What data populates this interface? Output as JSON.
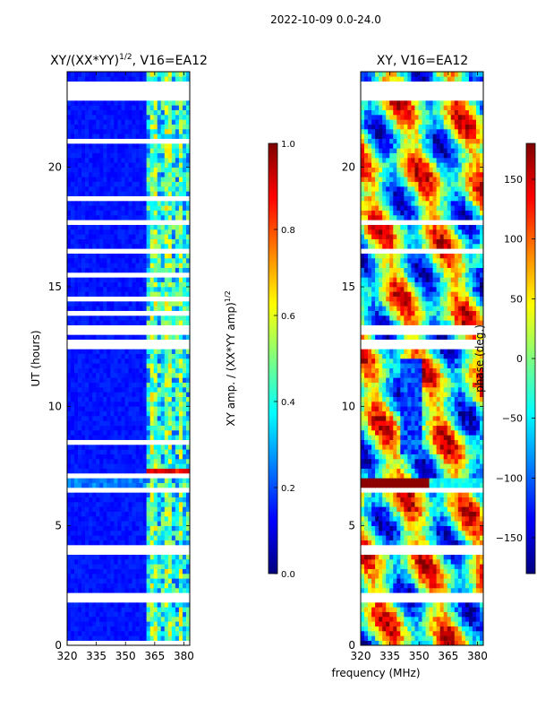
{
  "figure_title": "2022-10-09 0.0-24.0",
  "colors": {
    "background": "#ffffff",
    "jet": [
      "#00007f",
      "#0000ff",
      "#007fff",
      "#00ffff",
      "#7fff7f",
      "#ffff00",
      "#ff7f00",
      "#ff0000",
      "#7f0000"
    ]
  },
  "chart_data": [
    {
      "type": "heatmap",
      "title_main": "XY/(XX*YY)",
      "title_sup": "1/2",
      "title_rest": ", V16=EA12",
      "xlabel": "",
      "ylabel": "UT (hours)",
      "xlim": [
        320,
        383
      ],
      "ylim": [
        0,
        24
      ],
      "xticks": [
        320,
        335,
        350,
        365,
        380
      ],
      "yticks": [
        0,
        5,
        10,
        15,
        20
      ],
      "colorbar": {
        "label_main": "XY amp. / (XX*YY amp)",
        "label_sup": "1/2",
        "range": [
          0.0,
          1.0
        ],
        "ticks": [
          "0.0",
          "0.2",
          "0.4",
          "0.6",
          "0.8",
          "1.0"
        ],
        "tick_values": [
          0.0,
          0.2,
          0.4,
          0.6,
          0.8,
          1.0
        ]
      },
      "active_band_MHz": [
        360,
        383
      ],
      "flagged_intervals_UT": [
        [
          0.0,
          0.1
        ],
        [
          0.95,
          1.05
        ],
        [
          1.9,
          2.1
        ],
        [
          2.75,
          2.85
        ],
        [
          3.75,
          4.15
        ],
        [
          6.45,
          6.6
        ],
        [
          7.0,
          7.1
        ],
        [
          7.6,
          7.7
        ],
        [
          8.5,
          8.6
        ],
        [
          12.4,
          12.7
        ],
        [
          12.9,
          13.3
        ],
        [
          13.9,
          14.0
        ],
        [
          14.4,
          14.5
        ],
        [
          15.4,
          15.5
        ],
        [
          16.5,
          16.6
        ],
        [
          17.7,
          17.8
        ],
        [
          18.6,
          18.7
        ],
        [
          19.1,
          19.2
        ],
        [
          21.0,
          21.1
        ],
        [
          22.1,
          22.2
        ],
        [
          22.9,
          23.5
        ]
      ],
      "hotspot_UT": [
        6.9,
        7.4
      ]
    },
    {
      "type": "heatmap",
      "title": "XY, V16=EA12",
      "xlabel": "frequency (MHz)",
      "ylabel": "",
      "xlim": [
        320,
        383
      ],
      "ylim": [
        0,
        24
      ],
      "xticks": [
        320,
        335,
        350,
        365,
        380
      ],
      "yticks": [
        0,
        5,
        10,
        15,
        20
      ],
      "colorbar": {
        "label": "phase (deg.)",
        "range": [
          -180,
          180
        ],
        "ticks": [
          "−150",
          "−100",
          "−50",
          "0",
          "50",
          "100",
          "150"
        ],
        "tick_values": [
          -150,
          -100,
          -50,
          0,
          50,
          100,
          150
        ]
      },
      "flagged_intervals_UT": [
        [
          0.95,
          1.05
        ],
        [
          1.9,
          2.1
        ],
        [
          3.75,
          4.15
        ],
        [
          6.45,
          6.6
        ],
        [
          12.4,
          12.7
        ],
        [
          12.9,
          13.3
        ],
        [
          16.5,
          16.6
        ],
        [
          17.7,
          17.8
        ],
        [
          22.9,
          23.5
        ]
      ],
      "band_UT": [
        6.6,
        7.0
      ]
    }
  ]
}
